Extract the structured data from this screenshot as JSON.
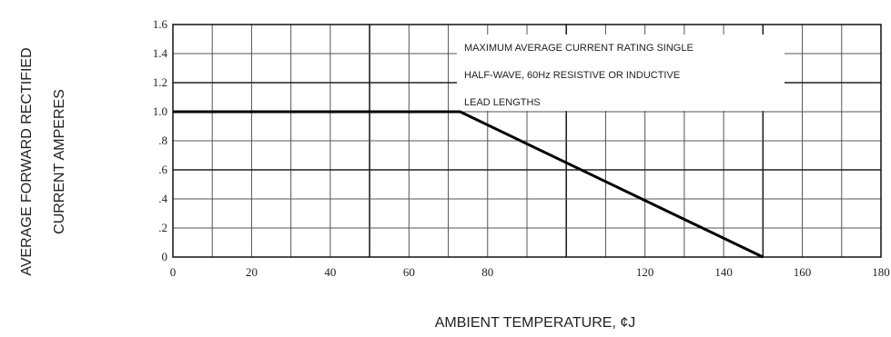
{
  "chart_data": {
    "type": "line",
    "title": "",
    "ylabel_line1": "AVERAGE FORWARD RECTIFIED",
    "ylabel_line2": "CURRENT AMPERES",
    "xlabel": "AMBIENT TEMPERATURE, ¢J",
    "xlim": [
      0,
      180
    ],
    "ylim": [
      0,
      1.6
    ],
    "x_ticks": [
      0,
      20,
      40,
      60,
      80,
      120,
      140,
      160,
      180
    ],
    "x_tick_labels": [
      "0",
      "20",
      "40",
      "60",
      "80",
      "120",
      "140",
      "160",
      "180"
    ],
    "y_ticks": [
      0,
      0.2,
      0.4,
      0.6,
      0.8,
      1.0,
      1.2,
      1.4,
      1.6
    ],
    "y_tick_labels": [
      "0",
      ".2",
      ".4",
      ".6",
      ".8",
      "1.0",
      "1.2",
      "1.4",
      "1.6"
    ],
    "grid": true,
    "series": [
      {
        "x": [
          0,
          73,
          150
        ],
        "y": [
          1.0,
          1.0,
          0.0
        ]
      }
    ],
    "annotations": [
      "MAXIMUM AVERAGE CURRENT RATING SINGLE",
      "HALF-WAVE, 60Hz RESISTIVE OR INDUCTIVE",
      "LEAD LENGTHS"
    ]
  }
}
